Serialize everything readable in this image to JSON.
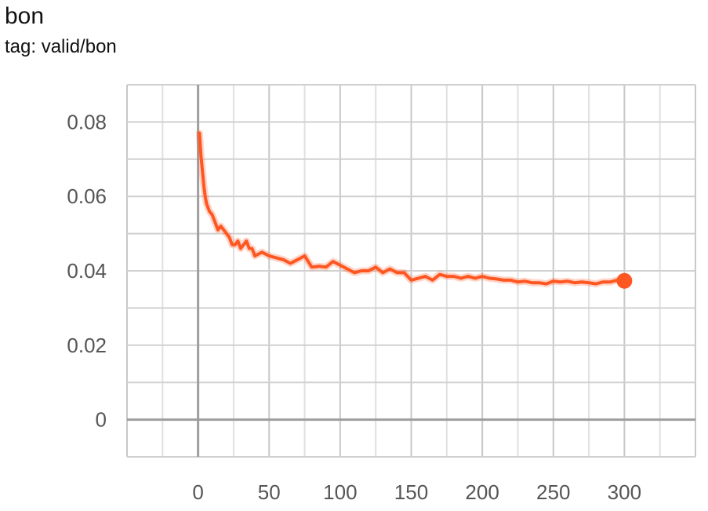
{
  "title": "bon",
  "tag": "tag: valid/bon",
  "chart_data": {
    "type": "line",
    "title": "bon",
    "subtitle": "tag: valid/bon",
    "xlim": [
      -50,
      350
    ],
    "ylim": [
      -0.01,
      0.09
    ],
    "x_ticks": [
      0,
      50,
      100,
      150,
      200,
      250,
      300
    ],
    "y_ticks": [
      0,
      0.02,
      0.04,
      0.06,
      0.08
    ],
    "x_tick_labels": [
      "0",
      "50",
      "100",
      "150",
      "200",
      "250",
      "300"
    ],
    "y_tick_labels": [
      "0",
      "0.02",
      "0.04",
      "0.06",
      "0.08"
    ],
    "grid": true,
    "series": [
      {
        "color": "#ff5722",
        "x": [
          1,
          2,
          3,
          4,
          5,
          6,
          8,
          10,
          12,
          14,
          16,
          18,
          20,
          22,
          24,
          26,
          28,
          30,
          32,
          34,
          36,
          38,
          40,
          45,
          50,
          55,
          60,
          65,
          70,
          75,
          80,
          85,
          90,
          95,
          100,
          105,
          110,
          115,
          120,
          125,
          130,
          135,
          140,
          145,
          150,
          155,
          160,
          165,
          170,
          175,
          180,
          185,
          190,
          195,
          200,
          205,
          210,
          215,
          220,
          225,
          230,
          235,
          240,
          245,
          250,
          255,
          260,
          265,
          270,
          275,
          280,
          285,
          290,
          295,
          300
        ],
        "y": [
          0.077,
          0.071,
          0.067,
          0.063,
          0.06,
          0.058,
          0.056,
          0.055,
          0.053,
          0.051,
          0.052,
          0.051,
          0.05,
          0.049,
          0.047,
          0.047,
          0.048,
          0.046,
          0.047,
          0.048,
          0.046,
          0.046,
          0.044,
          0.045,
          0.044,
          0.0435,
          0.043,
          0.042,
          0.043,
          0.044,
          0.041,
          0.0412,
          0.041,
          0.0425,
          0.0415,
          0.0405,
          0.0395,
          0.04,
          0.04,
          0.041,
          0.0395,
          0.0405,
          0.0395,
          0.0395,
          0.0375,
          0.038,
          0.0385,
          0.0375,
          0.039,
          0.0385,
          0.0385,
          0.038,
          0.0385,
          0.038,
          0.0385,
          0.038,
          0.0378,
          0.0375,
          0.0375,
          0.037,
          0.0372,
          0.0368,
          0.0368,
          0.0365,
          0.0372,
          0.037,
          0.0372,
          0.0368,
          0.037,
          0.0368,
          0.0365,
          0.037,
          0.037,
          0.0375,
          0.0373
        ]
      }
    ]
  }
}
